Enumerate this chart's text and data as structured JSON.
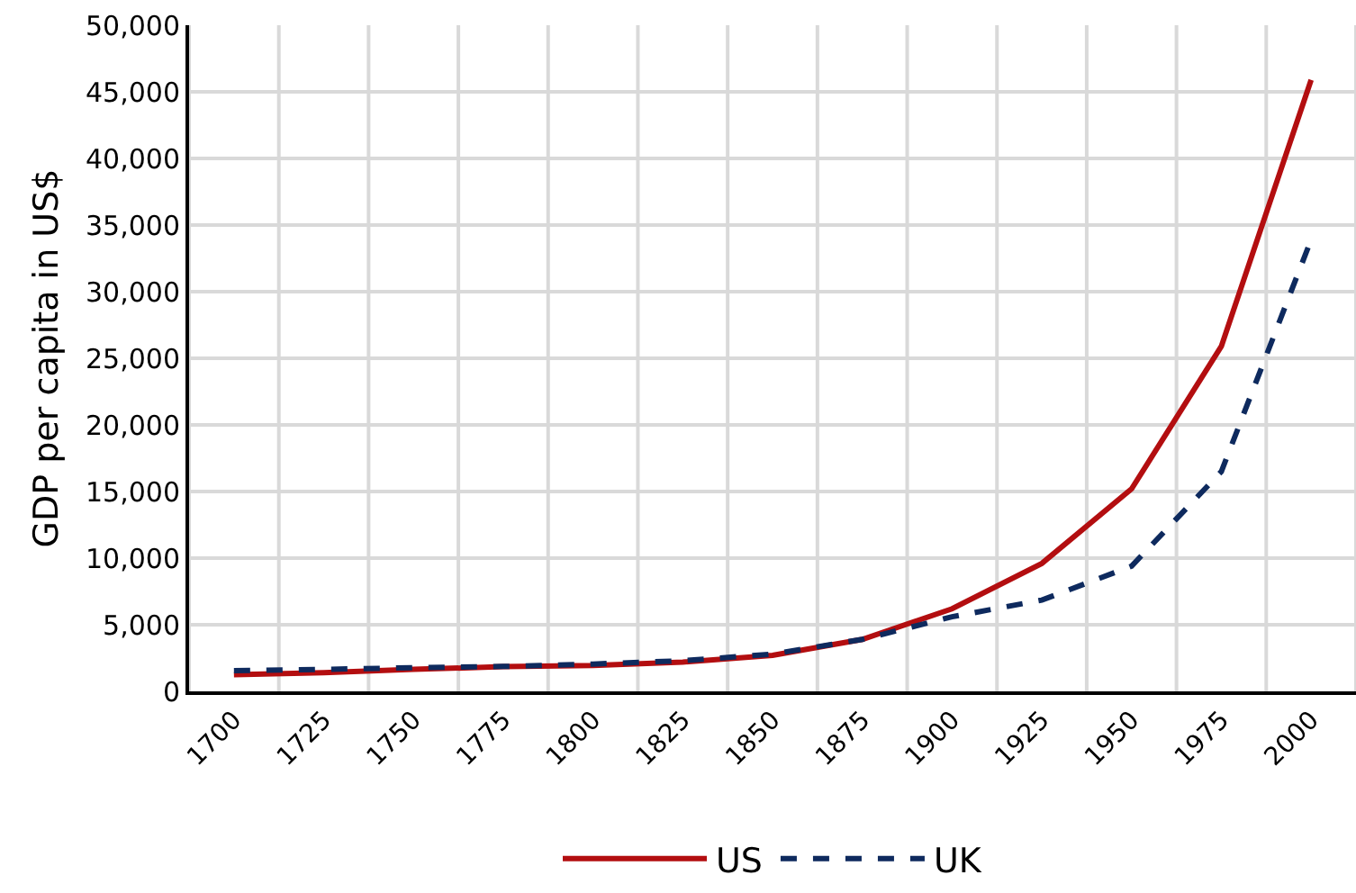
{
  "chart_data": {
    "type": "line",
    "ylabel": "GDP per capita in US$",
    "categories": [
      "1700",
      "1725",
      "1750",
      "1775",
      "1800",
      "1825",
      "1850",
      "1875",
      "1900",
      "1925",
      "1950",
      "1975",
      "2000"
    ],
    "series": [
      {
        "name": "US",
        "color": "#b30e10",
        "line_style": "solid",
        "values": [
          1250,
          1400,
          1650,
          1850,
          1950,
          2200,
          2700,
          3900,
          6200,
          9600,
          15200,
          25900,
          45900
        ]
      },
      {
        "name": "UK",
        "color": "#0e2a5e",
        "line_style": "dashed",
        "values": [
          1550,
          1650,
          1780,
          1870,
          2050,
          2300,
          2800,
          3900,
          5600,
          6850,
          9400,
          16500,
          33900
        ]
      }
    ],
    "ylim": [
      0,
      50000
    ],
    "yticks": [
      {
        "value": 0,
        "label": "0"
      },
      {
        "value": 5000,
        "label": "5,000"
      },
      {
        "value": 10000,
        "label": "10,000"
      },
      {
        "value": 15000,
        "label": "15,000"
      },
      {
        "value": 20000,
        "label": "20,000"
      },
      {
        "value": 25000,
        "label": "25,000"
      },
      {
        "value": 30000,
        "label": "30,000"
      },
      {
        "value": 35000,
        "label": "35,000"
      },
      {
        "value": 40000,
        "label": "40,000"
      },
      {
        "value": 45000,
        "label": "45,000"
      },
      {
        "value": 50000,
        "label": "50,000"
      }
    ],
    "grid": true,
    "legend": "bottom",
    "marker": "none"
  }
}
